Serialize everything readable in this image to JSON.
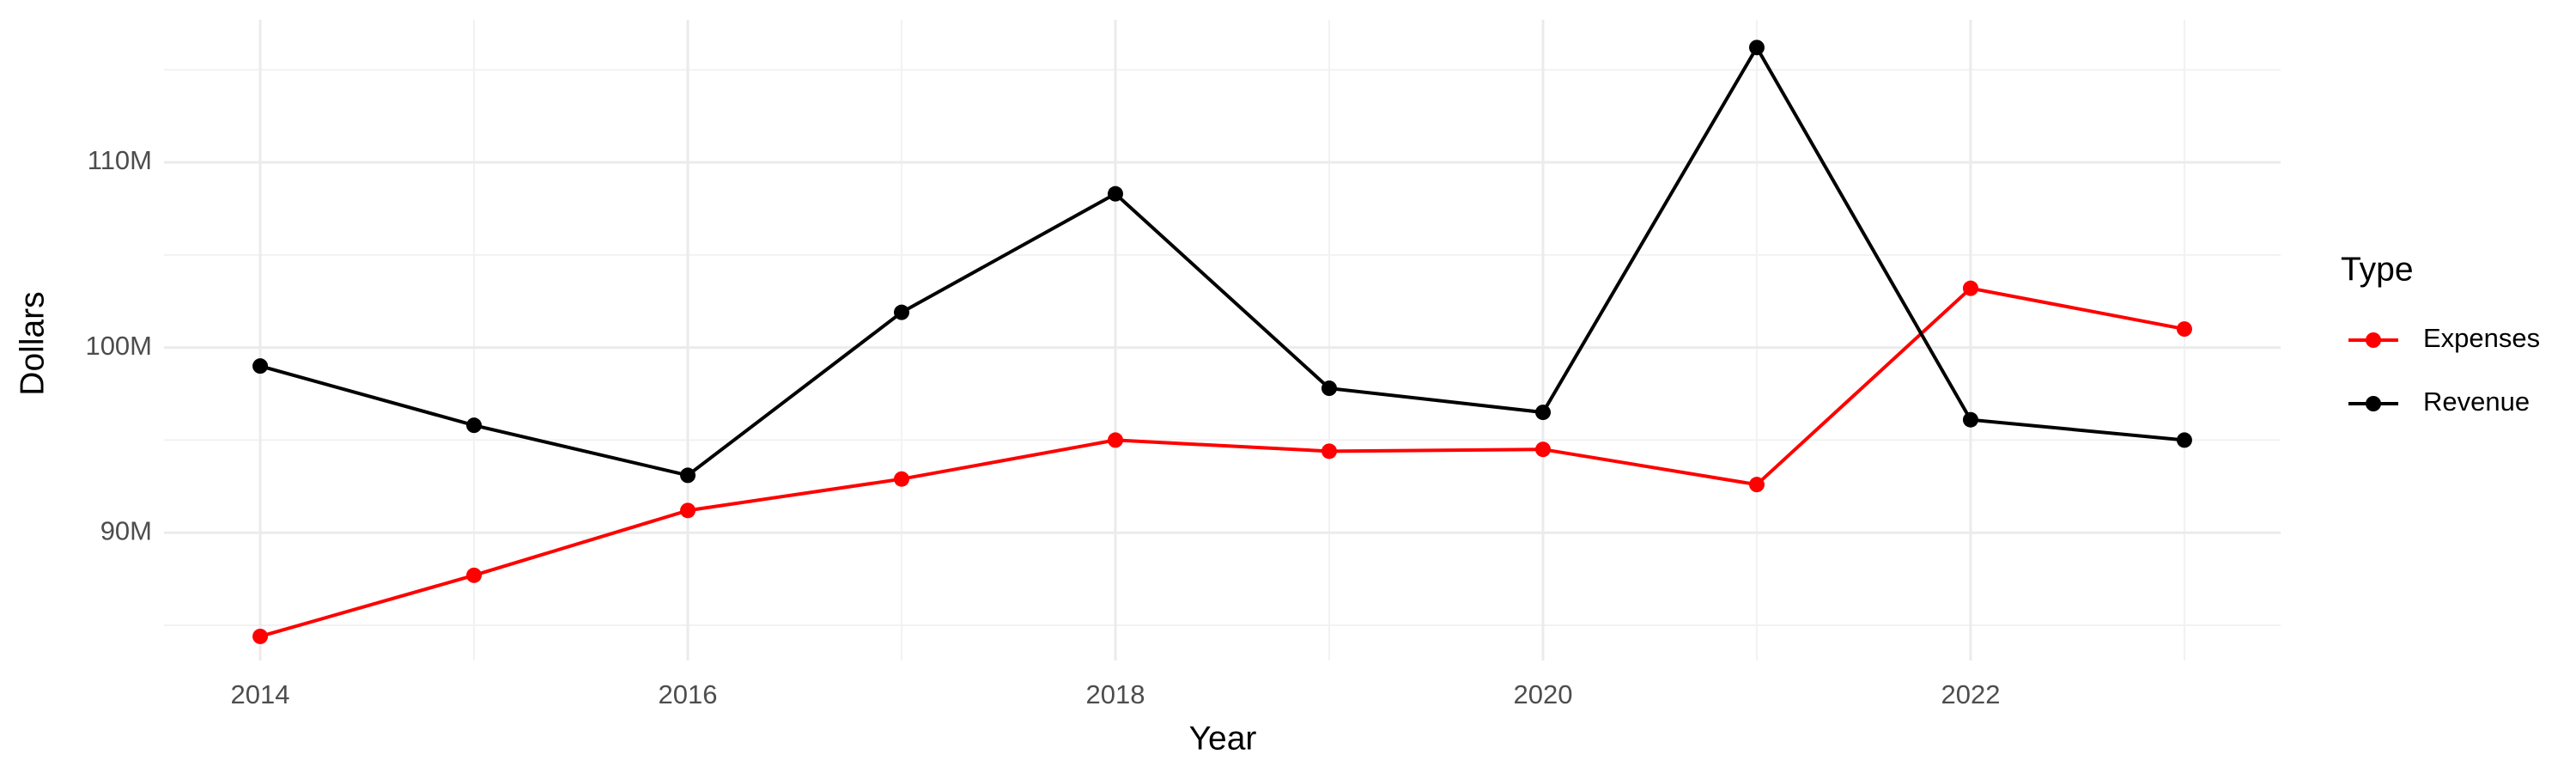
{
  "chart_data": {
    "type": "line",
    "x_label": "Year",
    "y_label": "Dollars",
    "legend_title": "Type",
    "x": [
      2014,
      2015,
      2016,
      2017,
      2018,
      2019,
      2020,
      2021,
      2022,
      2023
    ],
    "series": [
      {
        "name": "Expenses",
        "color": "#ff0000",
        "values": [
          84400000,
          87700000,
          91200000,
          92900000,
          95000000,
          94400000,
          94500000,
          92600000,
          103200000,
          101000000
        ]
      },
      {
        "name": "Revenue",
        "color": "#000000",
        "values": [
          99000000,
          95800000,
          93100000,
          101900000,
          108300000,
          97800000,
          96500000,
          116200000,
          96100000,
          95000000
        ]
      }
    ],
    "xlim": [
      2013.55,
      2023.45
    ],
    "xticks": [
      2014,
      2016,
      2018,
      2020,
      2022
    ],
    "x_minor_ticks": [
      2015,
      2017,
      2019,
      2021,
      2023
    ],
    "ylim": [
      83100000,
      117700000
    ],
    "yticks": [
      {
        "value": 90000000,
        "label": "90M"
      },
      {
        "value": 100000000,
        "label": "100M"
      },
      {
        "value": 110000000,
        "label": "110M"
      }
    ],
    "y_minor_ticks": [
      85000000,
      95000000,
      105000000,
      115000000
    ],
    "grid": true,
    "legend": "right"
  }
}
